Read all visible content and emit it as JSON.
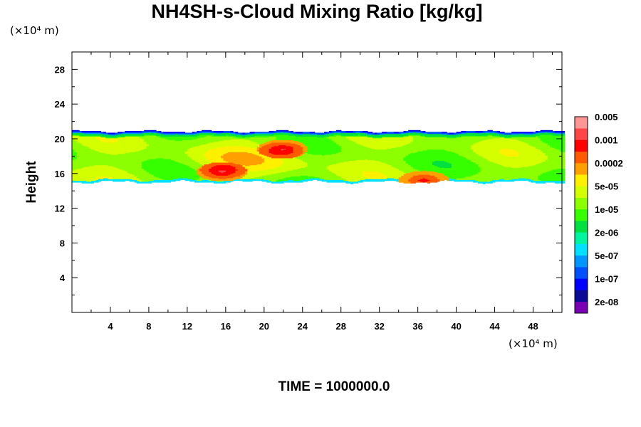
{
  "chart_data": {
    "type": "heatmap",
    "title": "NH4SH-s-Cloud Mixing Ratio [kg/kg]",
    "xlabel": "",
    "ylabel": "Height",
    "x_unit": "(×10⁴ m)",
    "y_unit": "(×10⁴ m)",
    "xlim": [
      0,
      51
    ],
    "ylim": [
      0,
      30
    ],
    "x_ticks": [
      4,
      8,
      12,
      16,
      20,
      24,
      28,
      32,
      36,
      40,
      44,
      48
    ],
    "y_ticks": [
      4,
      8,
      12,
      16,
      20,
      24,
      28
    ],
    "colorbar": {
      "colors": [
        "#7a00b4",
        "#0a0a96",
        "#0000ff",
        "#0050ff",
        "#0096ff",
        "#00e0ff",
        "#00f5a0",
        "#00e040",
        "#36ff00",
        "#8cff00",
        "#d4ff00",
        "#fff000",
        "#ffa000",
        "#ff5a00",
        "#ff0000",
        "#ff4646",
        "#ff9696"
      ],
      "labels": [
        "2e-08",
        "1e-07",
        "5e-07",
        "2e-06",
        "1e-05",
        "5e-05",
        "0.0002",
        "0.001",
        "0.005"
      ]
    },
    "cloud_layer": {
      "base_height": 15.0,
      "top_height": 20.8,
      "dominant_level": "1e-05",
      "max_level": "0.0002"
    },
    "features": [
      {
        "x": 15.5,
        "y": 16.2,
        "level": "0.0002"
      },
      {
        "x": 36.5,
        "y": 15.2,
        "level": "0.0002"
      },
      {
        "x": 21.8,
        "y": 18.8,
        "level": "0.0002"
      }
    ]
  },
  "footer": "TIME = 1000000.0"
}
